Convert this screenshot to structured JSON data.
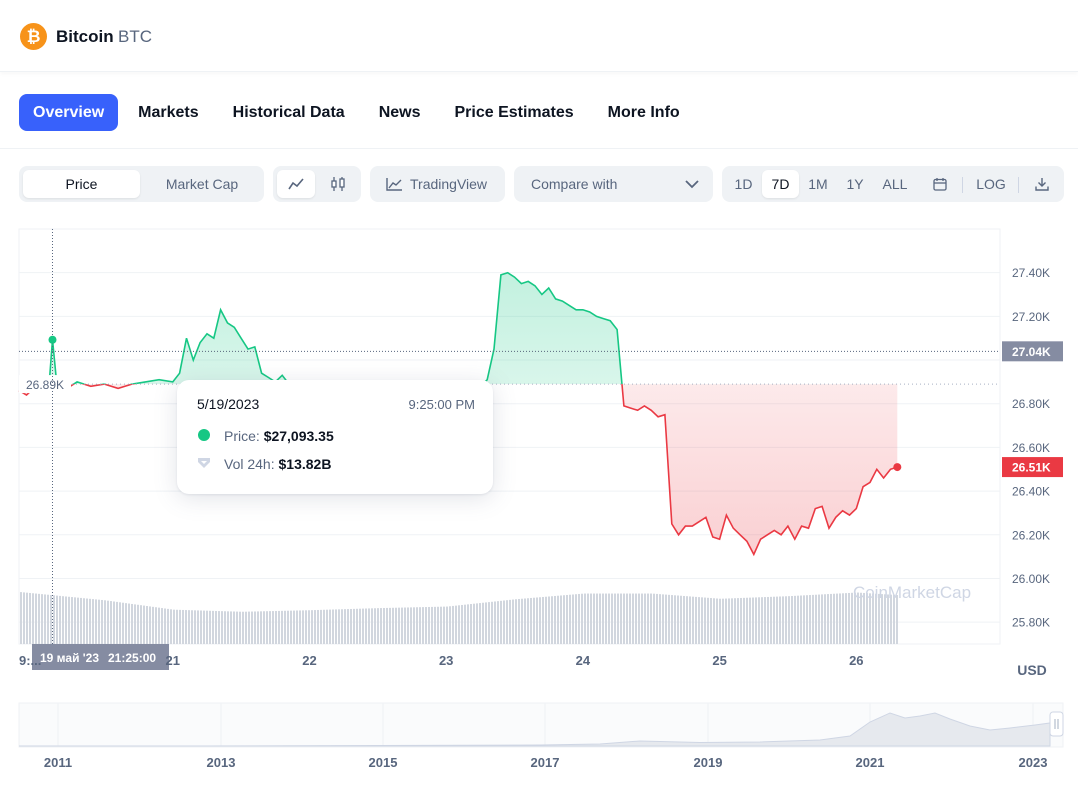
{
  "coin": {
    "name": "Bitcoin",
    "symbol": "BTC",
    "logo_glyph": "₿"
  },
  "tabs": [
    "Overview",
    "Markets",
    "Historical Data",
    "News",
    "Price Estimates",
    "More Info"
  ],
  "active_tab": 0,
  "controls": {
    "price_label": "Price",
    "market_cap_label": "Market Cap",
    "line_icon": "line-chart-icon",
    "candle_icon": "candlestick-icon",
    "tradingview_label": "TradingView",
    "compare_label": "Compare with",
    "ranges": [
      "1D",
      "7D",
      "1M",
      "1Y",
      "ALL"
    ],
    "active_range": "7D",
    "log_label": "LOG",
    "calendar_icon": "calendar-icon",
    "download_icon": "download-icon"
  },
  "tooltip": {
    "date": "5/19/2023",
    "time": "9:25:00 PM",
    "price_label": "Price:",
    "price_value": "$27,093.35",
    "volume_label": "Vol 24h:",
    "volume_value": "$13.82B"
  },
  "crosshair": {
    "date_label": "19 май '23",
    "time_label": "21:25:00"
  },
  "chart_data": {
    "type": "area",
    "title": "Bitcoin BTC price (7D)",
    "currency_label": "USD",
    "xlabel": "",
    "ylabel": "",
    "x_ticks": [
      "9:...",
      "21",
      "22",
      "23",
      "24",
      "25",
      "26"
    ],
    "y_ticks": [
      "27.40K",
      "27.20K",
      "27.04K",
      "26.80K",
      "26.60K",
      "26.51K",
      "26.40K",
      "26.20K",
      "26.00K",
      "25.80K"
    ],
    "ylim": [
      25700,
      27600
    ],
    "baseline": 26890,
    "baseline_label": "26.89K",
    "reference_price": 27040,
    "reference_label": "27.04K",
    "current_price": 26510,
    "current_label": "26.51K",
    "up_color": "#16c784",
    "down_color": "#ea3943",
    "days": [
      19.875,
      27.0
    ],
    "price": {
      "x": [
        19.875,
        19.93,
        20.0,
        20.05,
        20.1,
        20.12,
        20.15,
        20.2,
        20.25,
        20.3,
        20.4,
        20.5,
        20.6,
        20.7,
        20.8,
        20.9,
        21.0,
        21.05,
        21.1,
        21.15,
        21.2,
        21.25,
        21.3,
        21.35,
        21.4,
        21.45,
        21.5,
        21.55,
        21.6,
        21.65,
        21.7,
        21.75,
        21.8,
        21.85,
        21.9,
        21.95,
        22.0,
        22.1,
        22.2,
        22.3,
        22.4,
        22.5,
        22.6,
        22.7,
        22.8,
        22.9,
        23.0,
        23.05,
        23.1,
        23.15,
        23.2,
        23.25,
        23.3,
        23.35,
        23.4,
        23.45,
        23.5,
        23.55,
        23.6,
        23.65,
        23.7,
        23.75,
        23.8,
        23.85,
        23.9,
        23.95,
        24.0,
        24.05,
        24.1,
        24.15,
        24.2,
        24.25,
        24.3,
        24.35,
        24.4,
        24.45,
        24.5,
        24.55,
        24.6,
        24.65,
        24.7,
        24.75,
        24.8,
        24.85,
        24.9,
        24.95,
        25.0,
        25.05,
        25.1,
        25.15,
        25.2,
        25.25,
        25.3,
        25.35,
        25.4,
        25.45,
        25.5,
        25.55,
        25.6,
        25.65,
        25.7,
        25.75,
        25.8,
        25.85,
        25.9,
        25.95,
        26.0,
        26.05,
        26.1,
        26.15,
        26.2,
        26.25,
        26.3
      ],
      "y": [
        26860,
        26840,
        26880,
        26890,
        26930,
        27093,
        26900,
        26920,
        26880,
        26900,
        26880,
        26890,
        26870,
        26890,
        26900,
        26910,
        26900,
        26940,
        27100,
        27000,
        27080,
        27120,
        27100,
        27230,
        27170,
        27150,
        27100,
        27050,
        27060,
        26940,
        26920,
        26900,
        26930,
        26890,
        26880,
        26870,
        26860,
        26860,
        26870,
        26860,
        26840,
        26900,
        26840,
        26890,
        26890,
        26860,
        26870,
        26900,
        26890,
        26880,
        26900,
        26880,
        26910,
        27050,
        27390,
        27400,
        27380,
        27350,
        27360,
        27340,
        27300,
        27330,
        27280,
        27270,
        27250,
        27230,
        27230,
        27220,
        27200,
        27190,
        27180,
        27140,
        26790,
        26780,
        26770,
        26790,
        26770,
        26740,
        26750,
        26250,
        26200,
        26240,
        26240,
        26260,
        26280,
        26190,
        26180,
        26290,
        26230,
        26200,
        26170,
        26110,
        26180,
        26200,
        26220,
        26200,
        26240,
        26180,
        26240,
        26230,
        26320,
        26330,
        26230,
        26280,
        26310,
        26290,
        26320,
        26420,
        26440,
        26500,
        26460,
        26500,
        26510
      ]
    },
    "volume_series": {
      "x": [
        19.875,
        20.5,
        21.0,
        21.5,
        22.0,
        22.5,
        23.0,
        23.5,
        24.0,
        24.5,
        25.0,
        25.5,
        26.0,
        26.3
      ],
      "values": [
        1.0,
        0.84,
        0.66,
        0.62,
        0.65,
        0.69,
        0.72,
        0.86,
        0.97,
        0.97,
        0.87,
        0.92,
        0.99,
        0.94
      ]
    },
    "navigator": {
      "x_ticks": [
        "2011",
        "2013",
        "2015",
        "2017",
        "2019",
        "2021",
        "2023"
      ],
      "watermark": "CoinMarketCap"
    }
  }
}
